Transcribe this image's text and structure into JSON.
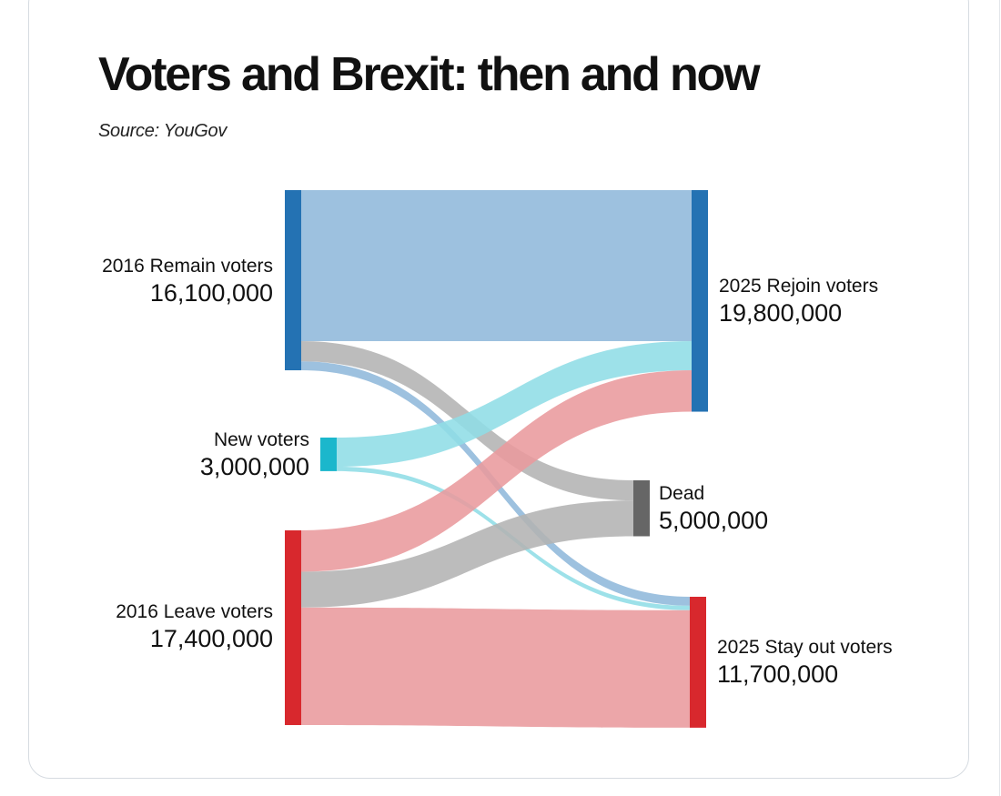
{
  "title": "Voters and Brexit: then and now",
  "source": "Source: YouGov",
  "chart_data": {
    "type": "sankey",
    "title": "Voters and Brexit: then and now",
    "units": "voters",
    "nodes": [
      {
        "id": "remain2016",
        "label": "2016 Remain voters",
        "value": 16100000,
        "value_text": "16,100,000",
        "color": "#2472b3",
        "column": 0
      },
      {
        "id": "new",
        "label": "New voters",
        "value": 3000000,
        "value_text": "3,000,000",
        "color": "#1bb7cc",
        "column": 0
      },
      {
        "id": "leave2016",
        "label": "2016 Leave voters",
        "value": 17400000,
        "value_text": "17,400,000",
        "color": "#d8282d",
        "column": 0
      },
      {
        "id": "rejoin2025",
        "label": "2025 Rejoin voters",
        "value": 19800000,
        "value_text": "19,800,000",
        "color": "#2472b3",
        "column": 2
      },
      {
        "id": "dead",
        "label": "Dead",
        "value": 5000000,
        "value_text": "5,000,000",
        "color": "#666666",
        "column": 1
      },
      {
        "id": "stayout2025",
        "label": "2025 Stay out voters",
        "value": 11700000,
        "value_text": "11,700,000",
        "color": "#d8282d",
        "column": 2
      }
    ],
    "links": [
      {
        "source": "remain2016",
        "target": "rejoin2025",
        "value": 13500000,
        "color": "#8fb8db"
      },
      {
        "source": "remain2016",
        "target": "dead",
        "value": 1800000,
        "color": "#b3b3b3"
      },
      {
        "source": "remain2016",
        "target": "stayout2025",
        "value": 800000,
        "color": "#8fb8db"
      },
      {
        "source": "new",
        "target": "rejoin2025",
        "value": 2600000,
        "color": "#8fdde6"
      },
      {
        "source": "new",
        "target": "stayout2025",
        "value": 400000,
        "color": "#8fdde6"
      },
      {
        "source": "leave2016",
        "target": "rejoin2025",
        "value": 3700000,
        "color": "#e99a9d"
      },
      {
        "source": "leave2016",
        "target": "dead",
        "value": 3200000,
        "color": "#b3b3b3"
      },
      {
        "source": "leave2016",
        "target": "stayout2025",
        "value": 10500000,
        "color": "#e99a9d"
      }
    ]
  }
}
